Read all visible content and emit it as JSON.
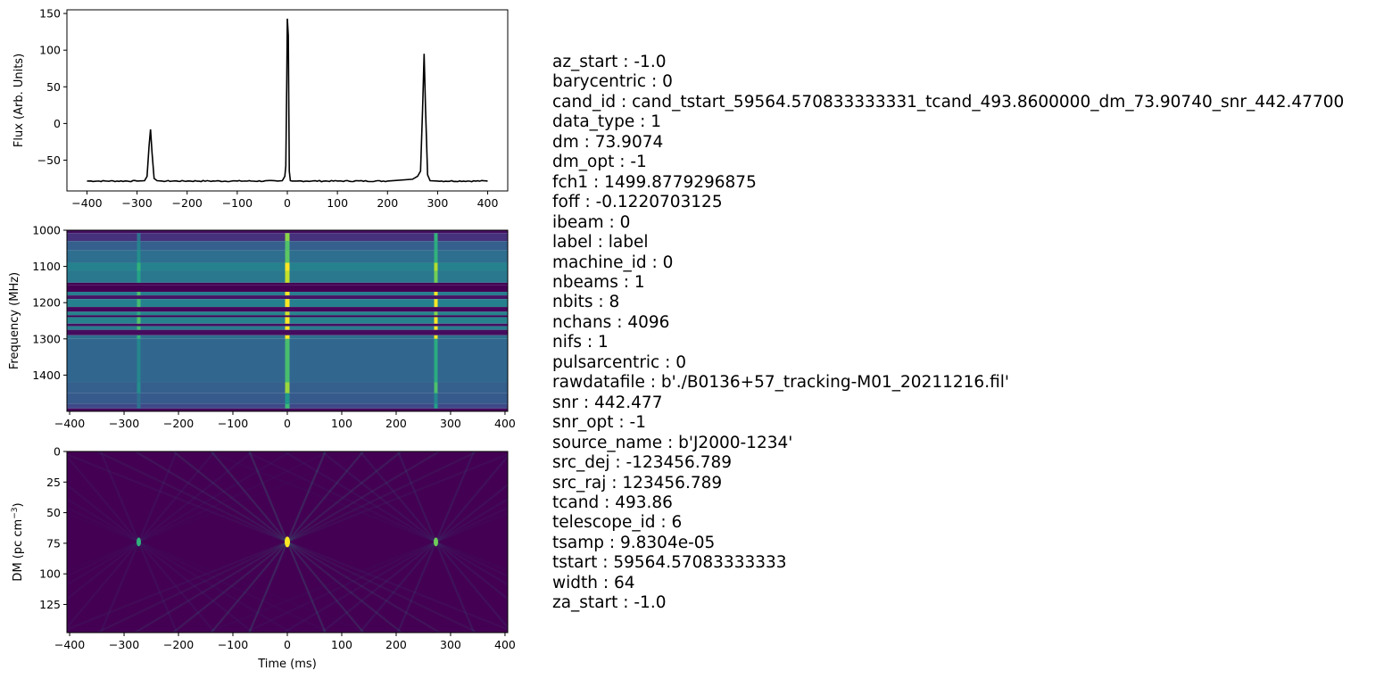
{
  "chart_data": [
    {
      "type": "line",
      "panel": "profile",
      "ylabel": "Flux (Arb. Units)",
      "xlim": [
        -440,
        440
      ],
      "ylim": [
        -92,
        155
      ],
      "xticks": [
        -400,
        -300,
        -200,
        -100,
        0,
        100,
        200,
        300,
        400
      ],
      "yticks": [
        -50,
        0,
        50,
        100,
        150
      ],
      "color": "#000000",
      "baseline": -78.5,
      "x": [
        -400,
        -300,
        -285,
        -280,
        -276,
        -273,
        -270,
        -266,
        -260,
        -250,
        -200,
        -100,
        -20,
        -10,
        -5,
        -3,
        -1,
        0,
        2,
        4,
        6,
        10,
        20,
        100,
        200,
        250,
        260,
        266,
        270,
        273,
        276,
        280,
        285,
        300,
        400
      ],
      "y": [
        -78.5,
        -78.5,
        -78,
        -72,
        -30,
        -8,
        -40,
        -75,
        -78,
        -78.5,
        -78.5,
        -78.5,
        -78.5,
        -78,
        -72,
        -58,
        60,
        143,
        120,
        -65,
        -78,
        -78.5,
        -78.5,
        -78.5,
        -78.5,
        -76,
        -72,
        -65,
        20,
        95,
        20,
        -70,
        -78,
        -78.5,
        -78.5
      ]
    },
    {
      "type": "heatmap",
      "panel": "frequency-time",
      "colormap": "viridis",
      "ylabel": "Frequency (MHz)",
      "xlim": [
        -405,
        405
      ],
      "ylim": [
        1000,
        1500
      ],
      "y_inverted": true,
      "xticks": [
        -400,
        -300,
        -200,
        -100,
        0,
        100,
        200,
        300,
        400
      ],
      "yticks": [
        1000,
        1100,
        1200,
        1300,
        1400
      ],
      "pulses_ms": [
        -273,
        0,
        273
      ],
      "pulse_strength": [
        0.35,
        1.0,
        0.75
      ],
      "bands": [
        {
          "from": 1000,
          "to": 1008,
          "level": 0.04
        },
        {
          "from": 1008,
          "to": 1030,
          "level": 0.14
        },
        {
          "from": 1030,
          "to": 1055,
          "level": 0.3
        },
        {
          "from": 1055,
          "to": 1090,
          "level": 0.36
        },
        {
          "from": 1090,
          "to": 1112,
          "level": 0.44
        },
        {
          "from": 1112,
          "to": 1145,
          "level": 0.4
        },
        {
          "from": 1145,
          "to": 1152,
          "level": 0.0
        },
        {
          "from": 1152,
          "to": 1170,
          "level": 0.0
        },
        {
          "from": 1170,
          "to": 1180,
          "level": 0.42
        },
        {
          "from": 1180,
          "to": 1190,
          "level": 0.05
        },
        {
          "from": 1190,
          "to": 1212,
          "level": 0.44
        },
        {
          "from": 1212,
          "to": 1225,
          "level": 0.02
        },
        {
          "from": 1225,
          "to": 1235,
          "level": 0.45
        },
        {
          "from": 1235,
          "to": 1240,
          "level": 0.0
        },
        {
          "from": 1240,
          "to": 1258,
          "level": 0.45
        },
        {
          "from": 1258,
          "to": 1265,
          "level": 0.04
        },
        {
          "from": 1265,
          "to": 1275,
          "level": 0.42
        },
        {
          "from": 1275,
          "to": 1290,
          "level": 0.03
        },
        {
          "from": 1290,
          "to": 1300,
          "level": 0.36
        },
        {
          "from": 1300,
          "to": 1420,
          "level": 0.33
        },
        {
          "from": 1420,
          "to": 1450,
          "level": 0.3
        },
        {
          "from": 1450,
          "to": 1480,
          "level": 0.28
        },
        {
          "from": 1480,
          "to": 1492,
          "level": 0.22
        },
        {
          "from": 1492,
          "to": 1500,
          "level": 0.02
        }
      ]
    },
    {
      "type": "heatmap",
      "panel": "dm-time",
      "colormap": "viridis",
      "xlabel": "Time (ms)",
      "ylabel": "DM (pc cm$^{-3}$)",
      "xlim": [
        -405,
        405
      ],
      "ylim": [
        0,
        148
      ],
      "y_inverted": true,
      "xticks": [
        -400,
        -300,
        -200,
        -100,
        0,
        100,
        200,
        300,
        400
      ],
      "yticks": [
        0,
        25,
        50,
        75,
        100,
        125
      ],
      "dm_peak": 73.9,
      "pulses_ms": [
        -273,
        0,
        273
      ],
      "pulse_strength": [
        0.35,
        1.0,
        0.6
      ]
    }
  ],
  "parameters": [
    "az_start : -1.0",
    "barycentric : 0",
    "cand_id : cand_tstart_59564.570833333331_tcand_493.8600000_dm_73.90740_snr_442.47700",
    "data_type : 1",
    "dm : 73.9074",
    "dm_opt : -1",
    "fch1 : 1499.8779296875",
    "foff : -0.1220703125",
    "ibeam : 0",
    "label : label",
    "machine_id : 0",
    "nbeams : 1",
    "nbits : 8",
    "nchans : 4096",
    "nifs : 1",
    "pulsarcentric : 0",
    "rawdatafile : b'./B0136+57_tracking-M01_20211216.fil'",
    "snr : 442.477",
    "snr_opt : -1",
    "source_name : b'J2000-1234'",
    "src_dej : -123456.789",
    "src_raj : 123456.789",
    "tcand : 493.86",
    "telescope_id : 6",
    "tsamp : 9.8304e-05",
    "tstart : 59564.57083333333",
    "width : 64",
    "za_start : -1.0"
  ]
}
